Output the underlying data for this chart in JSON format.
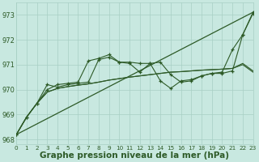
{
  "background_color": "#c8e8e0",
  "grid_color": "#a8cfc4",
  "line_color": "#2d5a27",
  "xlabel": "Graphe pression niveau de la mer (hPa)",
  "ylim": [
    967.8,
    973.5
  ],
  "xlim": [
    0,
    23
  ],
  "yticks": [
    968,
    969,
    970,
    971,
    972,
    973
  ],
  "xticks": [
    0,
    1,
    2,
    3,
    4,
    5,
    6,
    7,
    8,
    9,
    10,
    11,
    12,
    13,
    14,
    15,
    16,
    17,
    18,
    19,
    20,
    21,
    22,
    23
  ],
  "trend_x": [
    0,
    23
  ],
  "trend_y": [
    968.2,
    973.1
  ],
  "smooth1_x": [
    0,
    1,
    2,
    3,
    4,
    5,
    6,
    7,
    8,
    9,
    10,
    11,
    12,
    13,
    14,
    15,
    16,
    17,
    18,
    19,
    20,
    21,
    22,
    23
  ],
  "smooth1_y": [
    968.2,
    968.9,
    969.45,
    969.9,
    970.05,
    970.12,
    970.18,
    970.23,
    970.3,
    970.38,
    970.44,
    970.5,
    970.55,
    970.6,
    970.65,
    970.7,
    970.72,
    970.75,
    970.78,
    970.8,
    970.82,
    970.85,
    971.0,
    970.7
  ],
  "smooth2_x": [
    0,
    1,
    2,
    3,
    4,
    5,
    6,
    7,
    8,
    9,
    10,
    11,
    12,
    13,
    14,
    15,
    16,
    17,
    18,
    19,
    20,
    21,
    22,
    23
  ],
  "smooth2_y": [
    968.2,
    968.9,
    969.45,
    969.9,
    970.05,
    970.12,
    970.18,
    970.23,
    970.3,
    970.38,
    970.44,
    970.5,
    970.55,
    970.6,
    970.65,
    970.7,
    970.72,
    970.75,
    970.78,
    970.8,
    970.82,
    970.85,
    971.05,
    970.75
  ],
  "jagged1_x": [
    0,
    1,
    2,
    3,
    4,
    5,
    6,
    7,
    8,
    9,
    10,
    11,
    12,
    13,
    14,
    15,
    16,
    17,
    18,
    19,
    20,
    21,
    22,
    23
  ],
  "jagged1_y": [
    968.2,
    968.9,
    969.45,
    970.0,
    970.2,
    970.25,
    970.3,
    971.15,
    971.25,
    971.4,
    971.1,
    971.1,
    971.05,
    971.05,
    971.1,
    970.6,
    970.3,
    970.35,
    970.55,
    970.65,
    970.7,
    971.6,
    972.2,
    973.05
  ],
  "jagged2_x": [
    0,
    1,
    2,
    3,
    4,
    5,
    6,
    7,
    8,
    9,
    10,
    11,
    12,
    13,
    14,
    15,
    16,
    17,
    18,
    19,
    20,
    21,
    22,
    23
  ],
  "jagged2_y": [
    968.2,
    968.9,
    969.45,
    970.2,
    970.1,
    970.2,
    970.25,
    970.3,
    971.2,
    971.3,
    971.1,
    971.05,
    970.7,
    971.05,
    970.35,
    970.05,
    970.35,
    970.4,
    970.55,
    970.65,
    970.65,
    970.75,
    972.2,
    973.1
  ]
}
